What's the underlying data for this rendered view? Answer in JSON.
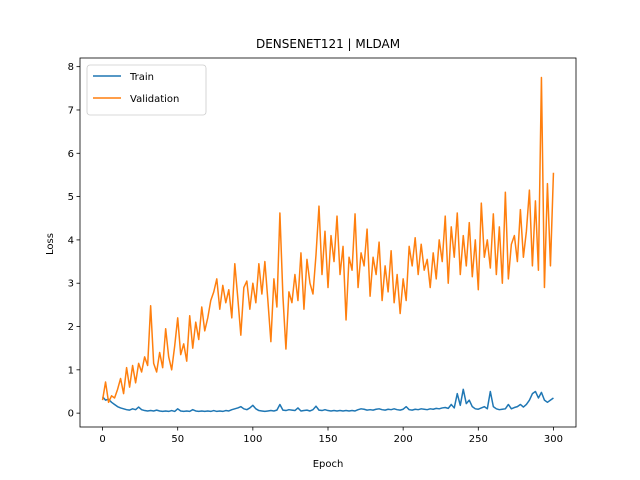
{
  "chart_data": {
    "type": "line",
    "title": "DENSENET121 | MLDAM",
    "xlabel": "Epoch",
    "ylabel": "Loss",
    "xlim": [
      -15,
      315
    ],
    "ylim": [
      -0.32,
      8.2
    ],
    "xticks": [
      0,
      50,
      100,
      150,
      200,
      250,
      300
    ],
    "yticks": [
      0,
      1,
      2,
      3,
      4,
      5,
      6,
      7,
      8
    ],
    "grid": false,
    "legend": "top-left",
    "series": [
      {
        "name": "Train",
        "color": "#1f77b4",
        "points": [
          [
            0,
            0.38
          ],
          [
            2,
            0.3
          ],
          [
            4,
            0.32
          ],
          [
            6,
            0.25
          ],
          [
            8,
            0.2
          ],
          [
            10,
            0.15
          ],
          [
            12,
            0.12
          ],
          [
            14,
            0.1
          ],
          [
            16,
            0.08
          ],
          [
            18,
            0.07
          ],
          [
            20,
            0.1
          ],
          [
            22,
            0.08
          ],
          [
            24,
            0.14
          ],
          [
            26,
            0.08
          ],
          [
            28,
            0.06
          ],
          [
            30,
            0.05
          ],
          [
            32,
            0.06
          ],
          [
            34,
            0.05
          ],
          [
            36,
            0.07
          ],
          [
            38,
            0.05
          ],
          [
            40,
            0.04
          ],
          [
            42,
            0.05
          ],
          [
            44,
            0.04
          ],
          [
            46,
            0.06
          ],
          [
            48,
            0.04
          ],
          [
            50,
            0.1
          ],
          [
            52,
            0.05
          ],
          [
            54,
            0.04
          ],
          [
            56,
            0.05
          ],
          [
            58,
            0.04
          ],
          [
            60,
            0.08
          ],
          [
            62,
            0.05
          ],
          [
            64,
            0.04
          ],
          [
            66,
            0.05
          ],
          [
            68,
            0.04
          ],
          [
            70,
            0.05
          ],
          [
            72,
            0.04
          ],
          [
            74,
            0.06
          ],
          [
            76,
            0.04
          ],
          [
            78,
            0.05
          ],
          [
            80,
            0.04
          ],
          [
            82,
            0.06
          ],
          [
            84,
            0.05
          ],
          [
            86,
            0.08
          ],
          [
            88,
            0.1
          ],
          [
            90,
            0.12
          ],
          [
            92,
            0.15
          ],
          [
            94,
            0.1
          ],
          [
            96,
            0.08
          ],
          [
            98,
            0.12
          ],
          [
            100,
            0.18
          ],
          [
            102,
            0.1
          ],
          [
            104,
            0.06
          ],
          [
            106,
            0.05
          ],
          [
            108,
            0.04
          ],
          [
            110,
            0.05
          ],
          [
            112,
            0.06
          ],
          [
            114,
            0.05
          ],
          [
            116,
            0.07
          ],
          [
            118,
            0.2
          ],
          [
            120,
            0.07
          ],
          [
            122,
            0.06
          ],
          [
            124,
            0.08
          ],
          [
            126,
            0.07
          ],
          [
            128,
            0.06
          ],
          [
            130,
            0.12
          ],
          [
            132,
            0.05
          ],
          [
            134,
            0.06
          ],
          [
            136,
            0.07
          ],
          [
            138,
            0.05
          ],
          [
            140,
            0.08
          ],
          [
            142,
            0.16
          ],
          [
            144,
            0.07
          ],
          [
            146,
            0.06
          ],
          [
            148,
            0.08
          ],
          [
            150,
            0.06
          ],
          [
            152,
            0.05
          ],
          [
            154,
            0.06
          ],
          [
            156,
            0.05
          ],
          [
            158,
            0.06
          ],
          [
            160,
            0.05
          ],
          [
            162,
            0.06
          ],
          [
            164,
            0.05
          ],
          [
            166,
            0.06
          ],
          [
            168,
            0.05
          ],
          [
            170,
            0.08
          ],
          [
            172,
            0.1
          ],
          [
            174,
            0.09
          ],
          [
            176,
            0.07
          ],
          [
            178,
            0.08
          ],
          [
            180,
            0.07
          ],
          [
            182,
            0.09
          ],
          [
            184,
            0.1
          ],
          [
            186,
            0.08
          ],
          [
            188,
            0.07
          ],
          [
            190,
            0.09
          ],
          [
            192,
            0.08
          ],
          [
            194,
            0.1
          ],
          [
            196,
            0.08
          ],
          [
            198,
            0.07
          ],
          [
            200,
            0.09
          ],
          [
            202,
            0.15
          ],
          [
            204,
            0.08
          ],
          [
            206,
            0.07
          ],
          [
            208,
            0.09
          ],
          [
            210,
            0.08
          ],
          [
            212,
            0.1
          ],
          [
            214,
            0.09
          ],
          [
            216,
            0.08
          ],
          [
            218,
            0.1
          ],
          [
            220,
            0.09
          ],
          [
            222,
            0.11
          ],
          [
            224,
            0.1
          ],
          [
            226,
            0.12
          ],
          [
            228,
            0.13
          ],
          [
            230,
            0.11
          ],
          [
            232,
            0.2
          ],
          [
            234,
            0.12
          ],
          [
            236,
            0.45
          ],
          [
            238,
            0.18
          ],
          [
            240,
            0.55
          ],
          [
            242,
            0.22
          ],
          [
            244,
            0.3
          ],
          [
            246,
            0.15
          ],
          [
            248,
            0.1
          ],
          [
            250,
            0.09
          ],
          [
            252,
            0.12
          ],
          [
            254,
            0.15
          ],
          [
            256,
            0.1
          ],
          [
            258,
            0.5
          ],
          [
            260,
            0.15
          ],
          [
            262,
            0.1
          ],
          [
            264,
            0.08
          ],
          [
            266,
            0.09
          ],
          [
            268,
            0.1
          ],
          [
            270,
            0.2
          ],
          [
            272,
            0.1
          ],
          [
            274,
            0.13
          ],
          [
            276,
            0.15
          ],
          [
            278,
            0.2
          ],
          [
            280,
            0.14
          ],
          [
            282,
            0.2
          ],
          [
            284,
            0.3
          ],
          [
            286,
            0.45
          ],
          [
            288,
            0.5
          ],
          [
            290,
            0.35
          ],
          [
            292,
            0.48
          ],
          [
            294,
            0.3
          ],
          [
            296,
            0.25
          ],
          [
            298,
            0.3
          ],
          [
            300,
            0.35
          ]
        ]
      },
      {
        "name": "Validation",
        "color": "#ff7f0e",
        "points": [
          [
            0,
            0.3
          ],
          [
            2,
            0.72
          ],
          [
            4,
            0.25
          ],
          [
            6,
            0.4
          ],
          [
            8,
            0.35
          ],
          [
            10,
            0.55
          ],
          [
            12,
            0.8
          ],
          [
            14,
            0.45
          ],
          [
            16,
            1.05
          ],
          [
            18,
            0.6
          ],
          [
            20,
            1.1
          ],
          [
            22,
            0.7
          ],
          [
            24,
            1.15
          ],
          [
            26,
            0.95
          ],
          [
            28,
            1.3
          ],
          [
            30,
            1.1
          ],
          [
            32,
            2.48
          ],
          [
            34,
            1.15
          ],
          [
            36,
            0.95
          ],
          [
            38,
            1.4
          ],
          [
            40,
            1.05
          ],
          [
            42,
            1.95
          ],
          [
            44,
            1.3
          ],
          [
            46,
            1.0
          ],
          [
            48,
            1.55
          ],
          [
            50,
            2.2
          ],
          [
            52,
            1.35
          ],
          [
            54,
            1.6
          ],
          [
            56,
            1.2
          ],
          [
            58,
            2.25
          ],
          [
            60,
            1.5
          ],
          [
            62,
            2.1
          ],
          [
            64,
            1.7
          ],
          [
            66,
            2.45
          ],
          [
            68,
            1.9
          ],
          [
            70,
            2.2
          ],
          [
            72,
            2.6
          ],
          [
            74,
            2.8
          ],
          [
            76,
            3.1
          ],
          [
            78,
            2.4
          ],
          [
            80,
            2.95
          ],
          [
            82,
            2.55
          ],
          [
            84,
            2.85
          ],
          [
            86,
            2.2
          ],
          [
            88,
            3.45
          ],
          [
            90,
            2.65
          ],
          [
            92,
            1.8
          ],
          [
            94,
            2.9
          ],
          [
            96,
            3.05
          ],
          [
            98,
            2.4
          ],
          [
            100,
            3.0
          ],
          [
            102,
            2.55
          ],
          [
            104,
            3.45
          ],
          [
            106,
            2.75
          ],
          [
            108,
            3.5
          ],
          [
            110,
            2.6
          ],
          [
            112,
            1.65
          ],
          [
            114,
            3.1
          ],
          [
            116,
            2.45
          ],
          [
            118,
            4.62
          ],
          [
            120,
            2.7
          ],
          [
            122,
            1.48
          ],
          [
            124,
            2.8
          ],
          [
            126,
            2.55
          ],
          [
            128,
            3.2
          ],
          [
            130,
            2.6
          ],
          [
            132,
            3.7
          ],
          [
            134,
            2.4
          ],
          [
            136,
            3.55
          ],
          [
            138,
            3.0
          ],
          [
            140,
            2.75
          ],
          [
            142,
            3.65
          ],
          [
            144,
            4.78
          ],
          [
            146,
            3.2
          ],
          [
            148,
            4.2
          ],
          [
            150,
            2.9
          ],
          [
            152,
            4.1
          ],
          [
            154,
            3.5
          ],
          [
            156,
            4.55
          ],
          [
            158,
            3.2
          ],
          [
            160,
            3.85
          ],
          [
            162,
            2.15
          ],
          [
            164,
            3.6
          ],
          [
            166,
            3.3
          ],
          [
            168,
            4.6
          ],
          [
            170,
            2.9
          ],
          [
            172,
            3.7
          ],
          [
            174,
            3.4
          ],
          [
            176,
            4.25
          ],
          [
            178,
            2.7
          ],
          [
            180,
            3.6
          ],
          [
            182,
            3.2
          ],
          [
            184,
            3.95
          ],
          [
            186,
            2.6
          ],
          [
            188,
            3.4
          ],
          [
            190,
            2.8
          ],
          [
            192,
            3.75
          ],
          [
            194,
            2.55
          ],
          [
            196,
            3.2
          ],
          [
            198,
            2.3
          ],
          [
            200,
            3.1
          ],
          [
            202,
            2.6
          ],
          [
            204,
            3.85
          ],
          [
            206,
            3.4
          ],
          [
            208,
            4.05
          ],
          [
            210,
            3.2
          ],
          [
            212,
            3.9
          ],
          [
            214,
            3.3
          ],
          [
            216,
            3.55
          ],
          [
            218,
            2.9
          ],
          [
            220,
            3.7
          ],
          [
            222,
            3.1
          ],
          [
            224,
            4.0
          ],
          [
            226,
            3.5
          ],
          [
            228,
            4.55
          ],
          [
            230,
            3.0
          ],
          [
            232,
            4.3
          ],
          [
            234,
            3.6
          ],
          [
            236,
            4.62
          ],
          [
            238,
            3.2
          ],
          [
            240,
            4.1
          ],
          [
            242,
            3.4
          ],
          [
            244,
            4.4
          ],
          [
            246,
            3.15
          ],
          [
            248,
            4.0
          ],
          [
            250,
            2.85
          ],
          [
            252,
            4.85
          ],
          [
            254,
            3.6
          ],
          [
            256,
            4.0
          ],
          [
            258,
            3.35
          ],
          [
            260,
            4.6
          ],
          [
            262,
            3.2
          ],
          [
            264,
            4.3
          ],
          [
            266,
            3.0
          ],
          [
            268,
            5.1
          ],
          [
            270,
            3.1
          ],
          [
            272,
            3.9
          ],
          [
            274,
            4.1
          ],
          [
            276,
            3.5
          ],
          [
            278,
            4.7
          ],
          [
            280,
            3.6
          ],
          [
            282,
            4.2
          ],
          [
            284,
            5.15
          ],
          [
            286,
            3.4
          ],
          [
            288,
            4.9
          ],
          [
            290,
            3.3
          ],
          [
            292,
            7.75
          ],
          [
            294,
            2.9
          ],
          [
            296,
            5.3
          ],
          [
            298,
            3.4
          ],
          [
            300,
            5.55
          ]
        ]
      }
    ]
  }
}
